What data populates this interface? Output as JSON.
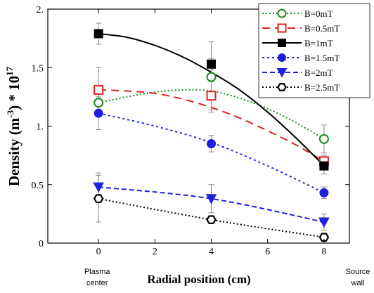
{
  "chart_data": {
    "type": "scatter",
    "title": "",
    "xlabel": "Radial position (cm)",
    "ylabel_main": "Density (m",
    "ylabel_exp": "-3",
    "ylabel_tail": ") * 10",
    "ylabel_pow": "17",
    "xlim": [
      -1.8,
      8.9
    ],
    "ylim": [
      0,
      2.0
    ],
    "xticks": [
      "0",
      "2",
      "4",
      "6",
      "8"
    ],
    "xtick_values": [
      0,
      2,
      4,
      6,
      8
    ],
    "yticks": [
      "0",
      "0.5",
      "1.",
      "1.5",
      "2."
    ],
    "ytick_values": [
      0,
      0.5,
      1.0,
      1.5,
      2.0
    ],
    "x_annotations": [
      {
        "text_lines": [
          "Plasma",
          "center"
        ],
        "x": 0
      },
      {
        "text_lines": [
          "Source",
          "wall"
        ],
        "x": 8
      }
    ],
    "legend_position": "top-right",
    "series": [
      {
        "name": "B=0mT",
        "color": "#1a8a1a",
        "marker": "open-circle",
        "dash": "2,3",
        "x": [
          0,
          4,
          8
        ],
        "y": [
          1.2,
          1.42,
          0.89
        ],
        "err": [
          0,
          0.3,
          0.12
        ],
        "fit": [
          [
            0,
            1.2
          ],
          [
            1,
            1.25
          ],
          [
            2,
            1.29
          ],
          [
            3,
            1.31
          ],
          [
            4,
            1.3
          ],
          [
            5,
            1.24
          ],
          [
            6,
            1.15
          ],
          [
            7,
            1.03
          ],
          [
            8,
            0.89
          ]
        ]
      },
      {
        "name": "B=0.5mT",
        "color": "#e02020",
        "marker": "open-square",
        "dash": "11,7",
        "x": [
          0,
          4,
          8
        ],
        "y": [
          1.31,
          1.26,
          0.7
        ],
        "err": [
          0.19,
          0.12,
          0.05
        ],
        "fit": [
          [
            0,
            1.31
          ],
          [
            1,
            1.3
          ],
          [
            2,
            1.28
          ],
          [
            3,
            1.23
          ],
          [
            4,
            1.16
          ],
          [
            5,
            1.07
          ],
          [
            6,
            0.96
          ],
          [
            7,
            0.84
          ],
          [
            8,
            0.7
          ]
        ]
      },
      {
        "name": "B=1mT",
        "color": "#000000",
        "marker": "filled-square",
        "dash": "",
        "x": [
          0,
          4,
          8
        ],
        "y": [
          1.79,
          1.53,
          0.66
        ],
        "err": [
          0.09,
          0.05,
          0.07
        ],
        "fit": [
          [
            0,
            1.79
          ],
          [
            1,
            1.76
          ],
          [
            2,
            1.69
          ],
          [
            3,
            1.59
          ],
          [
            4,
            1.46
          ],
          [
            5,
            1.31
          ],
          [
            6,
            1.12
          ],
          [
            7,
            0.9
          ],
          [
            8,
            0.66
          ]
        ]
      },
      {
        "name": "B=1.5mT",
        "color": "#1f1fe0",
        "marker": "filled-circle",
        "dash": "3,4",
        "x": [
          0,
          4,
          8
        ],
        "y": [
          1.11,
          0.85,
          0.43
        ],
        "err": [
          0.14,
          0.07,
          0.05
        ],
        "fit": [
          [
            0,
            1.11
          ],
          [
            2,
            1.0
          ],
          [
            4,
            0.86
          ],
          [
            6,
            0.66
          ],
          [
            8,
            0.43
          ]
        ]
      },
      {
        "name": "B=2mT",
        "color": "#1f1fe0",
        "marker": "filled-triangle-down",
        "dash": "7,4",
        "x": [
          0,
          4,
          8
        ],
        "y": [
          0.48,
          0.38,
          0.18
        ],
        "err": [
          0.12,
          0.12,
          0.07
        ],
        "fit": [
          [
            0,
            0.48
          ],
          [
            4,
            0.38
          ],
          [
            8,
            0.18
          ]
        ]
      },
      {
        "name": "B=2.5mT",
        "color": "#000000",
        "marker": "open-hexagon",
        "dash": "2,3",
        "x": [
          0,
          4,
          8
        ],
        "y": [
          0.38,
          0.2,
          0.05
        ],
        "err": [
          0.2,
          0,
          0
        ],
        "fit": [
          [
            0,
            0.38
          ],
          [
            4,
            0.2
          ],
          [
            8,
            0.05
          ]
        ]
      }
    ]
  }
}
